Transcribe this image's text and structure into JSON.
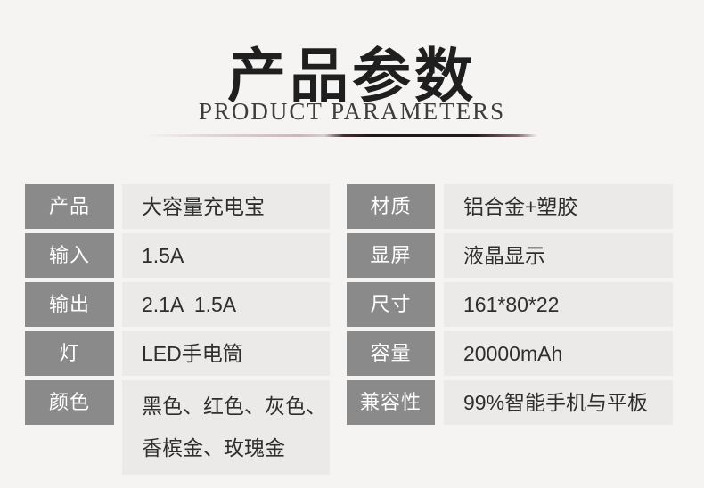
{
  "header": {
    "title": "产品参数",
    "subtitle": "PRODUCT PARAMETERS"
  },
  "table": {
    "left_rows": [
      {
        "label": "产品",
        "value": "大容量充电宝"
      },
      {
        "label": "输入",
        "value": "1.5A"
      },
      {
        "label": "输出",
        "value": "2.1A  1.5A"
      },
      {
        "label": "灯",
        "value": "LED手电筒"
      },
      {
        "label": "颜色",
        "value": "黑色、红色、灰色、\n香槟金、玫瑰金"
      }
    ],
    "right_rows": [
      {
        "label": "材质",
        "value": "铝合金+塑胶"
      },
      {
        "label": "显屏",
        "value": "液晶显示"
      },
      {
        "label": "尺寸",
        "value": "161*80*22"
      },
      {
        "label": "容量",
        "value": "20000mAh"
      },
      {
        "label": "兼容性",
        "value": "99%智能手机与平板"
      }
    ]
  },
  "colors": {
    "background": "#f5f4f2",
    "label_cell": "#8a8a8a",
    "label_text": "#ffffff",
    "value_cell": "#ebeae8",
    "value_text": "#2e2e2e",
    "title_text": "#1f1f1f",
    "accent_line_dark": "#261318",
    "accent_line_light": "#e6d2d5"
  }
}
